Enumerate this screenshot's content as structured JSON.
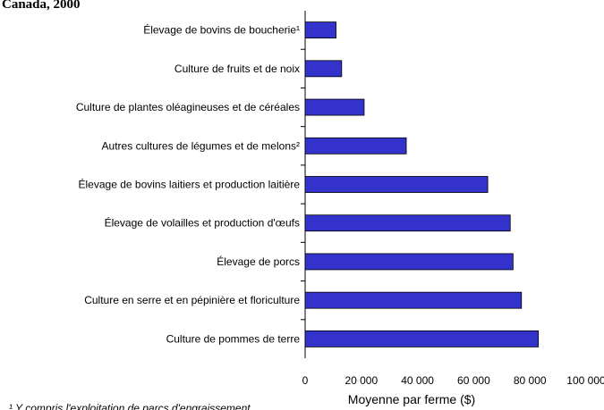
{
  "chart_data": {
    "type": "barh",
    "title": "Canada, 2000",
    "categories": [
      "Élevage de bovins de boucherie¹",
      "Culture de fruits et de noix",
      "Culture de plantes oléagineuses et de céréales",
      "Autres cultures de légumes et de melons²",
      "Élevage de bovins laitiers et production laitière",
      "Élevage de volailles et production d'œufs",
      "Élevage de porcs",
      "Culture en serre et en pépinière et floriculture",
      "Culture de pommes de terre"
    ],
    "values": [
      11000,
      13000,
      21000,
      36000,
      65000,
      73000,
      74000,
      77000,
      83000
    ],
    "color": "#3333cc",
    "xlabel": "Moyenne par ferme ($)",
    "xlim": [
      0,
      100000
    ],
    "xticks": [
      0,
      {
        "value": 20000,
        "label": "20 000"
      },
      {
        "value": 40000,
        "label": "40 000"
      },
      {
        "value": 60000,
        "label": "60 000"
      },
      {
        "value": 80000,
        "label": "80 000"
      },
      {
        "value": 100000,
        "label": "100 000"
      }
    ],
    "footnote": "¹ Y compris l'exploitation de parcs d'engraissement"
  }
}
